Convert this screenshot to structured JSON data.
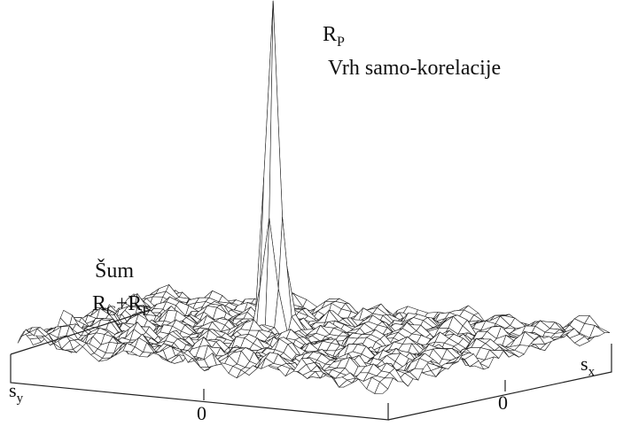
{
  "chart_data": {
    "type": "surface",
    "title": "",
    "axes": {
      "x": {
        "label_main": "s",
        "label_sub": "x",
        "ticks": [
          "0"
        ]
      },
      "y": {
        "label_main": "s",
        "label_sub": "y",
        "ticks": [
          "0"
        ]
      }
    },
    "annotations": {
      "peak": {
        "main": "R",
        "sub": "P",
        "caption": "Vrh samo-korelacije"
      },
      "noise": {
        "caption": "Šum",
        "term1_main": "R",
        "term1_sub": "C",
        "plus": "+",
        "term2_main": "R",
        "term2_sub": "F"
      }
    },
    "surface": {
      "grid_size": 46,
      "peak_height": 1.0,
      "noise_amplitude": 0.075,
      "wireframe_color": "#222222"
    }
  }
}
